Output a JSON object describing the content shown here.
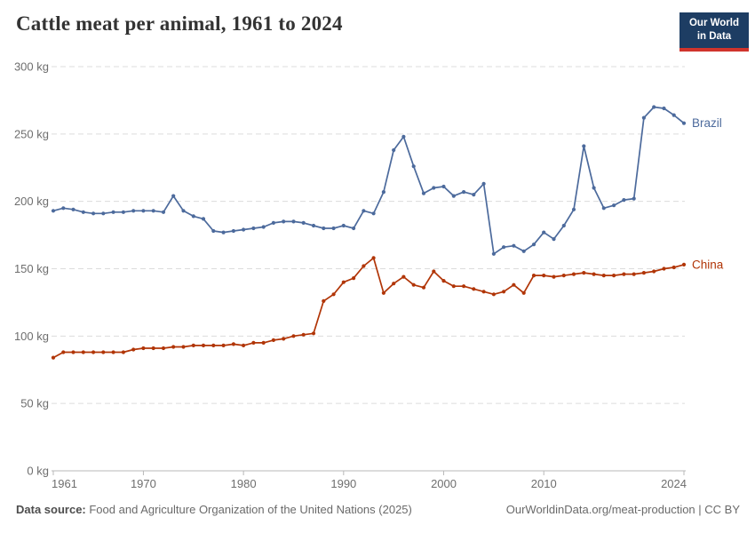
{
  "header": {
    "title": "Cattle meat per animal, 1961 to 2024"
  },
  "logo": {
    "line1": "Our World",
    "line2": "in Data",
    "bg_color": "#1d3d63",
    "accent_color": "#d0342c",
    "text_color": "#ffffff"
  },
  "chart_data": {
    "type": "line",
    "title": "Cattle meat per animal, 1961 to 2024",
    "unit": "kg",
    "xlabel": "",
    "ylabel": "",
    "xlim": [
      1961,
      2024
    ],
    "ylim": [
      0,
      300
    ],
    "x_ticks": [
      1961,
      1970,
      1980,
      1990,
      2000,
      2010,
      2024
    ],
    "y_ticks": [
      0,
      50,
      100,
      150,
      200,
      250,
      300
    ],
    "y_tick_suffix": " kg",
    "grid": "horizontal-dashed",
    "legend_position": "line-end-labels",
    "colors": {
      "grid": "#dcdcdc",
      "axis": "#b8b8b8",
      "tick_text": "#6e6e6e"
    },
    "x": [
      1961,
      1962,
      1963,
      1964,
      1965,
      1966,
      1967,
      1968,
      1969,
      1970,
      1971,
      1972,
      1973,
      1974,
      1975,
      1976,
      1977,
      1978,
      1979,
      1980,
      1981,
      1982,
      1983,
      1984,
      1985,
      1986,
      1987,
      1988,
      1989,
      1990,
      1991,
      1992,
      1993,
      1994,
      1995,
      1996,
      1997,
      1998,
      1999,
      2000,
      2001,
      2002,
      2003,
      2004,
      2005,
      2006,
      2007,
      2008,
      2009,
      2010,
      2011,
      2012,
      2013,
      2014,
      2015,
      2016,
      2017,
      2018,
      2019,
      2020,
      2021,
      2022,
      2023,
      2024
    ],
    "series": [
      {
        "name": "Brazil",
        "color": "#4C6A9C",
        "values": [
          193,
          195,
          194,
          192,
          191,
          191,
          192,
          192,
          193,
          193,
          193,
          192,
          204,
          193,
          189,
          187,
          178,
          177,
          178,
          179,
          180,
          181,
          184,
          185,
          185,
          184,
          182,
          180,
          180,
          182,
          180,
          193,
          191,
          207,
          238,
          248,
          226,
          206,
          210,
          211,
          204,
          207,
          205,
          213,
          161,
          166,
          167,
          163,
          168,
          177,
          172,
          182,
          194,
          241,
          210,
          195,
          197,
          201,
          202,
          262,
          270,
          269,
          264,
          258
        ]
      },
      {
        "name": "China",
        "color": "#B13507",
        "values": [
          84,
          88,
          88,
          88,
          88,
          88,
          88,
          88,
          90,
          91,
          91,
          91,
          92,
          92,
          93,
          93,
          93,
          93,
          94,
          93,
          95,
          95,
          97,
          98,
          100,
          101,
          102,
          126,
          131,
          140,
          143,
          152,
          158,
          132,
          139,
          144,
          138,
          136,
          148,
          141,
          137,
          137,
          135,
          133,
          131,
          133,
          138,
          132,
          145,
          145,
          144,
          145,
          146,
          147,
          146,
          145,
          145,
          146,
          146,
          147,
          148,
          150,
          151,
          153
        ]
      }
    ]
  },
  "footer": {
    "source_label": "Data source:",
    "source_text": " Food and Agriculture Organization of the United Nations (2025)",
    "link_text": "OurWorldinData.org/meat-production | CC BY"
  }
}
